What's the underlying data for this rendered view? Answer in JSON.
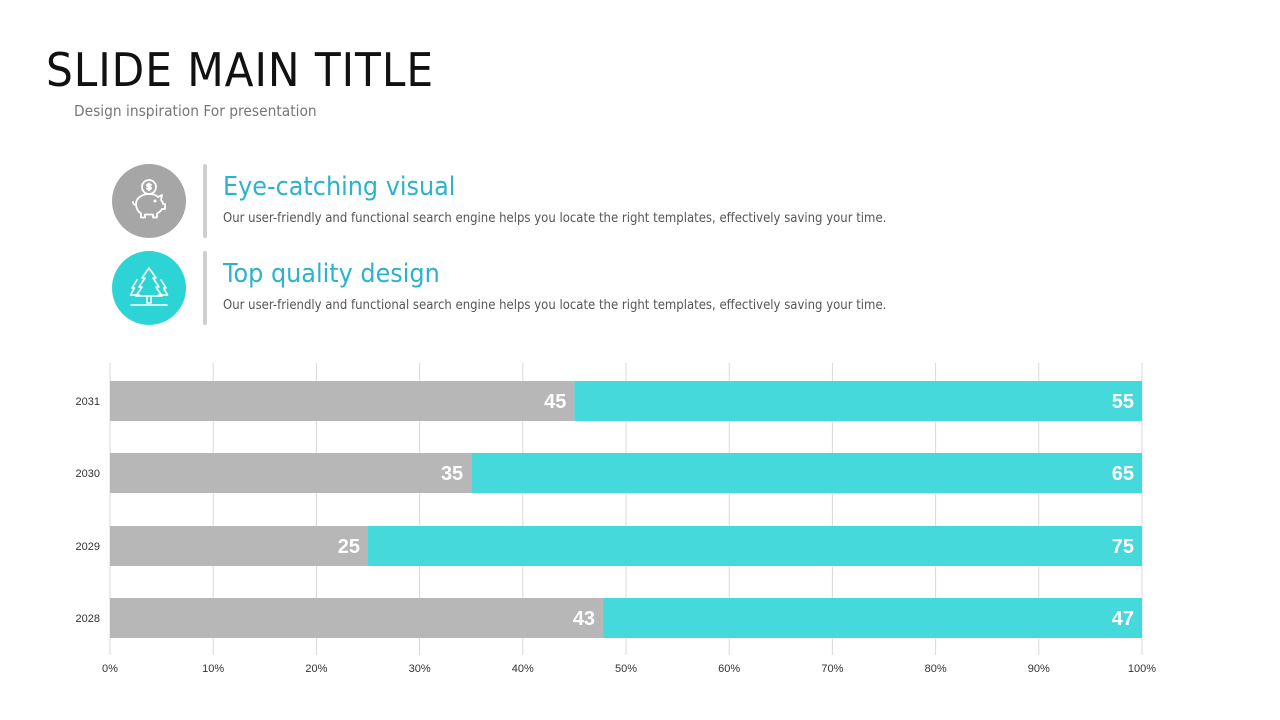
{
  "slide": {
    "title": "SLIDE MAIN TITLE",
    "subtitle": "Design inspiration For presentation"
  },
  "features": [
    {
      "heading": "Eye-catching visual",
      "description": "Our user-friendly and functional search engine helps you locate the right templates, effectively saving your time.",
      "icon": "piggy-bank-icon",
      "icon_bg": "#a6a6a6"
    },
    {
      "heading": "Top quality design",
      "description": "Our user-friendly and functional search engine helps you locate the right templates, effectively saving your time.",
      "icon": "pine-trees-icon",
      "icon_bg": "#2dd4d6"
    }
  ],
  "colors": {
    "heading_gradient_start": "#40d4d4",
    "heading_gradient_end": "#2196c8",
    "gray_series": "#b7b7b7",
    "cyan_series": "#46d9dc"
  },
  "chart_data": {
    "type": "bar",
    "orientation": "horizontal",
    "stacked": "100%",
    "categories": [
      "2031",
      "2030",
      "2029",
      "2028"
    ],
    "series": [
      {
        "values": [
          45,
          35,
          25,
          43
        ],
        "color": "#b7b7b7"
      },
      {
        "values": [
          55,
          65,
          75,
          47
        ],
        "color": "#46d9dc"
      }
    ],
    "xticks": [
      "0%",
      "10%",
      "20%",
      "30%",
      "40%",
      "50%",
      "60%",
      "70%",
      "80%",
      "90%",
      "100%"
    ],
    "xlim": [
      0,
      100
    ],
    "grid": "vertical",
    "legend": "none"
  }
}
